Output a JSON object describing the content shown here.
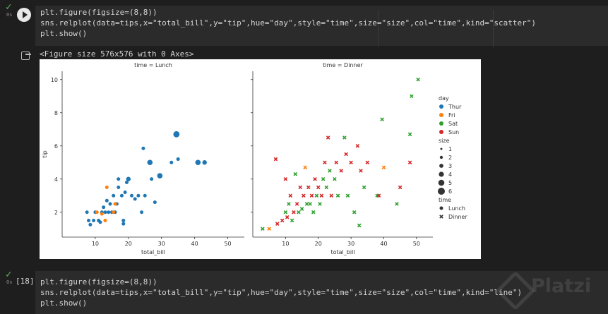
{
  "cell1": {
    "status": "✓",
    "time": "0s",
    "code_line1": "plt.figure(figsize=(8,8))",
    "code_line2": "sns.relplot(data=tips,x=\"total_bill\",y=\"tip\",hue=\"day\",style=\"time\",size=\"size\",col=\"time\",kind=\"scatter\")",
    "code_line3": "plt.show()"
  },
  "output": {
    "text": "<Figure size 576x576 with 0 Axes>"
  },
  "cell2": {
    "status": "✓",
    "time": "0s",
    "execution_count": "[18]",
    "code_line1": "plt.figure(figsize=(8,8))",
    "code_line2": "sns.relplot(data=tips,x=\"total_bill\",y=\"tip\",hue=\"day\",style=\"time\",size=\"size\",col=\"time\",kind=\"line\")",
    "code_line3": "plt.show()"
  },
  "watermark": "Platzi",
  "colors": {
    "Thur": "#1f77b4",
    "Fri": "#ff7f0e",
    "Sat": "#2ca02c",
    "Sun": "#d62728"
  },
  "chart_data": {
    "type": "scatter",
    "panels": [
      {
        "title": "time = Lunch",
        "xlabel": "total_bill",
        "ylabel": "tip",
        "marker": "circle",
        "points": [
          {
            "x": 7.5,
            "y": 2.0,
            "day": "Thur",
            "size": 2
          },
          {
            "x": 8.0,
            "y": 1.5,
            "day": "Thur",
            "size": 2
          },
          {
            "x": 8.5,
            "y": 1.25,
            "day": "Thur",
            "size": 2
          },
          {
            "x": 9.5,
            "y": 1.5,
            "day": "Thur",
            "size": 2
          },
          {
            "x": 10.0,
            "y": 2.0,
            "day": "Thur",
            "size": 2
          },
          {
            "x": 11.0,
            "y": 1.5,
            "day": "Thur",
            "size": 2
          },
          {
            "x": 11.5,
            "y": 1.4,
            "day": "Thur",
            "size": 2
          },
          {
            "x": 12.0,
            "y": 2.0,
            "day": "Thur",
            "size": 2
          },
          {
            "x": 12.5,
            "y": 2.3,
            "day": "Thur",
            "size": 2
          },
          {
            "x": 13.0,
            "y": 2.0,
            "day": "Thur",
            "size": 2
          },
          {
            "x": 13.5,
            "y": 2.7,
            "day": "Thur",
            "size": 2
          },
          {
            "x": 14.0,
            "y": 2.0,
            "day": "Thur",
            "size": 2
          },
          {
            "x": 14.5,
            "y": 2.5,
            "day": "Thur",
            "size": 2
          },
          {
            "x": 15.0,
            "y": 2.0,
            "day": "Thur",
            "size": 2
          },
          {
            "x": 15.5,
            "y": 3.0,
            "day": "Thur",
            "size": 2
          },
          {
            "x": 16.0,
            "y": 2.0,
            "day": "Thur",
            "size": 2
          },
          {
            "x": 16.5,
            "y": 2.5,
            "day": "Thur",
            "size": 2
          },
          {
            "x": 17.0,
            "y": 3.5,
            "day": "Thur",
            "size": 2
          },
          {
            "x": 17.0,
            "y": 4.0,
            "day": "Thur",
            "size": 2
          },
          {
            "x": 18.0,
            "y": 3.0,
            "day": "Thur",
            "size": 2
          },
          {
            "x": 18.5,
            "y": 1.5,
            "day": "Thur",
            "size": 2
          },
          {
            "x": 19.0,
            "y": 3.2,
            "day": "Thur",
            "size": 2
          },
          {
            "x": 19.5,
            "y": 3.8,
            "day": "Thur",
            "size": 2
          },
          {
            "x": 20.0,
            "y": 4.0,
            "day": "Thur",
            "size": 3
          },
          {
            "x": 21.0,
            "y": 3.0,
            "day": "Thur",
            "size": 2
          },
          {
            "x": 22.0,
            "y": 2.8,
            "day": "Thur",
            "size": 2
          },
          {
            "x": 23.0,
            "y": 3.0,
            "day": "Thur",
            "size": 2
          },
          {
            "x": 24.0,
            "y": 2.0,
            "day": "Thur",
            "size": 2
          },
          {
            "x": 24.5,
            "y": 5.85,
            "day": "Thur",
            "size": 2
          },
          {
            "x": 25.0,
            "y": 3.0,
            "day": "Thur",
            "size": 2
          },
          {
            "x": 26.5,
            "y": 5.0,
            "day": "Thur",
            "size": 4
          },
          {
            "x": 27.0,
            "y": 4.0,
            "day": "Thur",
            "size": 2
          },
          {
            "x": 28.0,
            "y": 2.6,
            "day": "Thur",
            "size": 2
          },
          {
            "x": 29.5,
            "y": 4.2,
            "day": "Thur",
            "size": 4
          },
          {
            "x": 33.0,
            "y": 5.0,
            "day": "Thur",
            "size": 2
          },
          {
            "x": 34.5,
            "y": 6.7,
            "day": "Thur",
            "size": 5
          },
          {
            "x": 35.0,
            "y": 5.2,
            "day": "Thur",
            "size": 2
          },
          {
            "x": 41.0,
            "y": 5.0,
            "day": "Thur",
            "size": 4
          },
          {
            "x": 43.0,
            "y": 5.0,
            "day": "Thur",
            "size": 3
          },
          {
            "x": 12.0,
            "y": 1.9,
            "day": "Fri",
            "size": 2
          },
          {
            "x": 13.5,
            "y": 3.5,
            "day": "Fri",
            "size": 2
          },
          {
            "x": 16.0,
            "y": 2.5,
            "day": "Fri",
            "size": 2
          },
          {
            "x": 10.5,
            "y": 2.0,
            "day": "Fri",
            "size": 2
          },
          {
            "x": 15.5,
            "y": 2.0,
            "day": "Fri",
            "size": 2
          },
          {
            "x": 13.0,
            "y": 1.5,
            "day": "Fri",
            "size": 2
          },
          {
            "x": 18.5,
            "y": 1.3,
            "day": "Thur",
            "size": 2
          }
        ]
      },
      {
        "title": "time = Dinner",
        "xlabel": "total_bill",
        "ylabel": "",
        "marker": "x",
        "points": [
          {
            "x": 3.0,
            "y": 1.0,
            "day": "Sat"
          },
          {
            "x": 5.0,
            "y": 1.0,
            "day": "Fri"
          },
          {
            "x": 7.0,
            "y": 5.2,
            "day": "Sun"
          },
          {
            "x": 7.5,
            "y": 1.3,
            "day": "Sun"
          },
          {
            "x": 9.0,
            "y": 1.5,
            "day": "Sun"
          },
          {
            "x": 10.0,
            "y": 2.0,
            "day": "Sat"
          },
          {
            "x": 10.0,
            "y": 4.0,
            "day": "Sun"
          },
          {
            "x": 10.5,
            "y": 1.7,
            "day": "Sun"
          },
          {
            "x": 11.0,
            "y": 2.5,
            "day": "Sat"
          },
          {
            "x": 11.5,
            "y": 3.0,
            "day": "Sun"
          },
          {
            "x": 12.0,
            "y": 1.5,
            "day": "Sat"
          },
          {
            "x": 12.5,
            "y": 2.0,
            "day": "Sun"
          },
          {
            "x": 13.0,
            "y": 4.3,
            "day": "Sat"
          },
          {
            "x": 13.5,
            "y": 2.5,
            "day": "Sun"
          },
          {
            "x": 14.0,
            "y": 2.0,
            "day": "Sat"
          },
          {
            "x": 14.5,
            "y": 3.5,
            "day": "Sun"
          },
          {
            "x": 15.0,
            "y": 2.2,
            "day": "Sat"
          },
          {
            "x": 15.5,
            "y": 3.0,
            "day": "Sun"
          },
          {
            "x": 16.0,
            "y": 4.7,
            "day": "Fri"
          },
          {
            "x": 16.5,
            "y": 2.5,
            "day": "Sat"
          },
          {
            "x": 17.0,
            "y": 3.5,
            "day": "Sun"
          },
          {
            "x": 17.5,
            "y": 2.5,
            "day": "Sat"
          },
          {
            "x": 18.0,
            "y": 3.0,
            "day": "Sun"
          },
          {
            "x": 18.5,
            "y": 2.0,
            "day": "Sat"
          },
          {
            "x": 19.0,
            "y": 4.0,
            "day": "Sun"
          },
          {
            "x": 19.5,
            "y": 3.0,
            "day": "Sat"
          },
          {
            "x": 20.0,
            "y": 3.5,
            "day": "Sun"
          },
          {
            "x": 20.5,
            "y": 2.5,
            "day": "Sat"
          },
          {
            "x": 21.0,
            "y": 3.0,
            "day": "Sun"
          },
          {
            "x": 21.5,
            "y": 4.0,
            "day": "Sat"
          },
          {
            "x": 22.0,
            "y": 5.0,
            "day": "Sun"
          },
          {
            "x": 22.5,
            "y": 3.5,
            "day": "Sat"
          },
          {
            "x": 23.0,
            "y": 6.5,
            "day": "Sun"
          },
          {
            "x": 23.5,
            "y": 4.5,
            "day": "Sat"
          },
          {
            "x": 24.0,
            "y": 3.0,
            "day": "Sun"
          },
          {
            "x": 25.0,
            "y": 4.0,
            "day": "Sat"
          },
          {
            "x": 25.5,
            "y": 5.0,
            "day": "Sun"
          },
          {
            "x": 26.0,
            "y": 3.0,
            "day": "Sat"
          },
          {
            "x": 27.0,
            "y": 4.5,
            "day": "Sun"
          },
          {
            "x": 28.0,
            "y": 6.5,
            "day": "Sat"
          },
          {
            "x": 28.5,
            "y": 5.5,
            "day": "Sun"
          },
          {
            "x": 29.0,
            "y": 3.0,
            "day": "Sat"
          },
          {
            "x": 30.0,
            "y": 5.0,
            "day": "Sun"
          },
          {
            "x": 31.0,
            "y": 2.0,
            "day": "Sat"
          },
          {
            "x": 32.0,
            "y": 6.0,
            "day": "Sun"
          },
          {
            "x": 32.5,
            "y": 1.2,
            "day": "Sat"
          },
          {
            "x": 33.0,
            "y": 4.5,
            "day": "Sun"
          },
          {
            "x": 34.0,
            "y": 3.5,
            "day": "Sat"
          },
          {
            "x": 35.0,
            "y": 5.0,
            "day": "Sun"
          },
          {
            "x": 38.0,
            "y": 3.0,
            "day": "Sat"
          },
          {
            "x": 38.5,
            "y": 3.0,
            "day": "Sun"
          },
          {
            "x": 39.5,
            "y": 7.6,
            "day": "Sat"
          },
          {
            "x": 40.0,
            "y": 4.7,
            "day": "Fri"
          },
          {
            "x": 44.0,
            "y": 2.5,
            "day": "Sat"
          },
          {
            "x": 45.0,
            "y": 3.5,
            "day": "Sun"
          },
          {
            "x": 48.0,
            "y": 5.0,
            "day": "Sun"
          },
          {
            "x": 48.0,
            "y": 6.7,
            "day": "Sat"
          },
          {
            "x": 48.5,
            "y": 9.0,
            "day": "Sat"
          },
          {
            "x": 50.5,
            "y": 10.0,
            "day": "Sat"
          }
        ]
      }
    ],
    "xlim": [
      0,
      55
    ],
    "ylim": [
      0.5,
      10.5
    ],
    "xticks": [
      10,
      20,
      30,
      40,
      50
    ],
    "yticks": [
      2,
      4,
      6,
      8,
      10
    ],
    "legend": {
      "placement": "right",
      "hue_title": "day",
      "hue_entries": [
        "Thur",
        "Fri",
        "Sat",
        "Sun"
      ],
      "size_title": "size",
      "size_entries": [
        "1",
        "2",
        "3",
        "4",
        "5",
        "6"
      ],
      "style_title": "time",
      "style_entries": [
        "Lunch",
        "Dinner"
      ]
    }
  }
}
